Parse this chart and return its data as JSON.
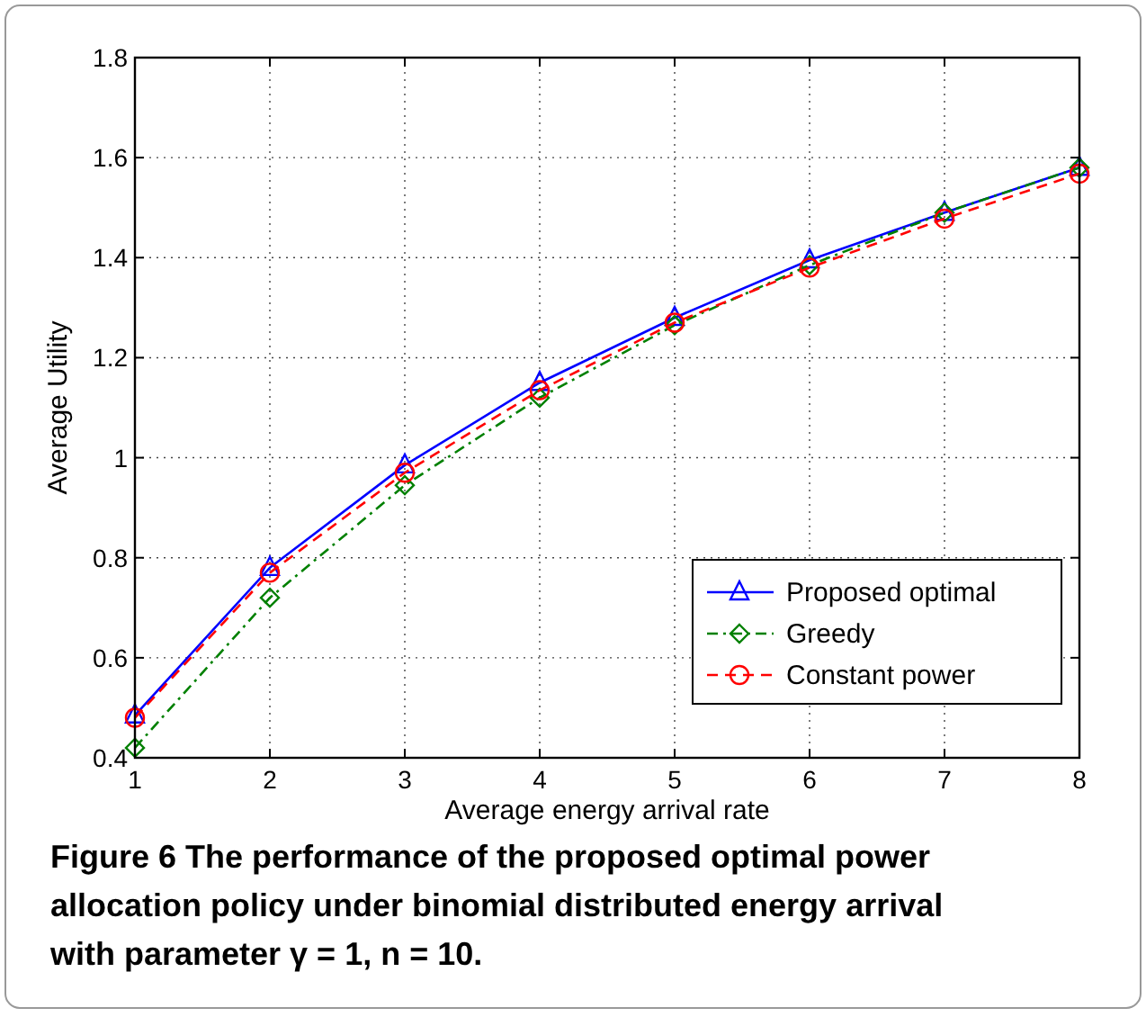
{
  "chart_data": {
    "type": "line",
    "xlabel": "Average energy arrival rate",
    "ylabel": "Average Utility",
    "x": [
      1,
      2,
      3,
      4,
      5,
      6,
      7,
      8
    ],
    "series": [
      {
        "name": "Proposed optimal",
        "color": "#0000ff",
        "marker": "triangle",
        "line_style": "solid",
        "values": [
          0.485,
          0.78,
          0.985,
          1.15,
          1.28,
          1.395,
          1.49,
          1.58
        ]
      },
      {
        "name": "Greedy",
        "color": "#008000",
        "marker": "diamond",
        "line_style": "dashdot",
        "values": [
          0.42,
          0.72,
          0.945,
          1.12,
          1.265,
          1.385,
          1.49,
          1.58
        ]
      },
      {
        "name": "Constant power",
        "color": "#ff0000",
        "marker": "circle",
        "line_style": "dashed",
        "values": [
          0.48,
          0.77,
          0.97,
          1.135,
          1.27,
          1.38,
          1.478,
          1.568
        ]
      }
    ],
    "xlim": [
      1,
      8
    ],
    "xticks": [
      1,
      2,
      3,
      4,
      5,
      6,
      7,
      8
    ],
    "ylim": [
      0.4,
      1.8
    ],
    "yticks": [
      0.4,
      0.6,
      0.8,
      1,
      1.2,
      1.4,
      1.6,
      1.8
    ],
    "grid": true,
    "legend": "bottom right",
    "annotations": [
      "Figure 6 The performance of the proposed optimal power allocation policy under binomial distributed energy arrival with parameter γ = 1, n = 10."
    ]
  }
}
